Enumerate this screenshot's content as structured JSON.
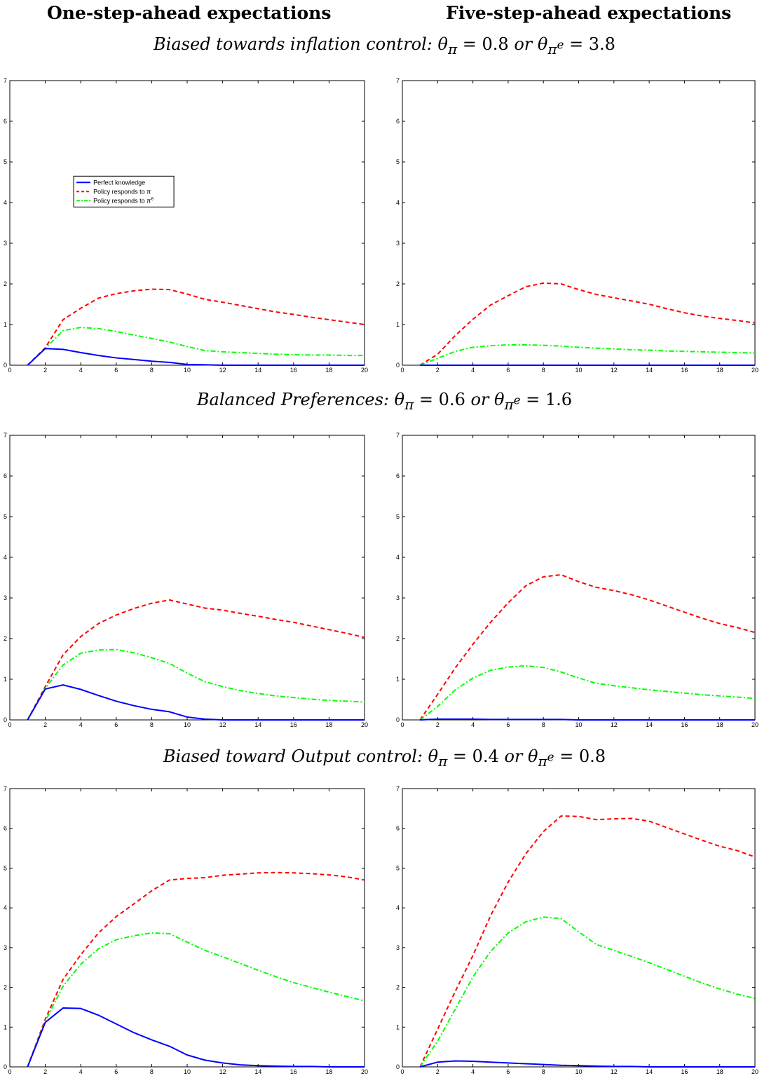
{
  "headers": {
    "left": "One-step-ahead expectations",
    "right": "Five-step-ahead expectations"
  },
  "rows": [
    {
      "title": "Biased towards inflation control:",
      "theta_pi": "0.8",
      "theta_pie": "3.8"
    },
    {
      "title": "Balanced Preferences:",
      "theta_pi": "0.6",
      "theta_pie": "1.6"
    },
    {
      "title": "Biased toward Output control:",
      "theta_pi": "0.4",
      "theta_pie": "0.8"
    }
  ],
  "title_parts": {
    "equals": "=",
    "or": "or"
  },
  "legend": {
    "entries": [
      {
        "label": "Perfect knowledge",
        "color": "#0000ff",
        "style": "solid"
      },
      {
        "label": "Policy responds to π",
        "color": "#ff0000",
        "style": "dashed"
      },
      {
        "label": "Policy responds to π",
        "superscript": "e",
        "color": "#00ff00",
        "style": "dashdot"
      }
    ]
  },
  "chart_data": [
    {
      "type": "line",
      "row": 0,
      "column": "one-step",
      "xlim": [
        0,
        20
      ],
      "ylim": [
        0,
        7
      ],
      "xticks": [
        0,
        2,
        4,
        6,
        8,
        10,
        12,
        14,
        16,
        18,
        20
      ],
      "yticks": [
        0,
        1,
        2,
        3,
        4,
        5,
        6,
        7
      ],
      "legend": "upper-left",
      "x": [
        1,
        2,
        3,
        4,
        5,
        6,
        7,
        8,
        9,
        10,
        11,
        12,
        13,
        14,
        15,
        16,
        17,
        18,
        19,
        20
      ],
      "series": [
        {
          "name": "Perfect knowledge",
          "values": [
            0,
            0.41,
            0.39,
            0.31,
            0.24,
            0.18,
            0.14,
            0.1,
            0.07,
            0.02,
            0.01,
            0,
            0,
            0,
            0,
            0,
            0,
            0,
            0,
            0
          ]
        },
        {
          "name": "Policy responds to π",
          "values": [
            0,
            0.43,
            1.12,
            1.4,
            1.65,
            1.76,
            1.83,
            1.87,
            1.86,
            1.75,
            1.62,
            1.55,
            1.47,
            1.39,
            1.31,
            1.25,
            1.18,
            1.12,
            1.06,
            1.0
          ]
        },
        {
          "name": "Policy responds to πe",
          "values": [
            0,
            0.41,
            0.85,
            0.93,
            0.9,
            0.83,
            0.74,
            0.66,
            0.57,
            0.46,
            0.36,
            0.33,
            0.31,
            0.29,
            0.27,
            0.26,
            0.25,
            0.25,
            0.24,
            0.24
          ]
        }
      ]
    },
    {
      "type": "line",
      "row": 0,
      "column": "five-step",
      "xlim": [
        0,
        20
      ],
      "ylim": [
        0,
        7
      ],
      "xticks": [
        0,
        2,
        4,
        6,
        8,
        10,
        12,
        14,
        16,
        18,
        20
      ],
      "yticks": [
        0,
        1,
        2,
        3,
        4,
        5,
        6,
        7
      ],
      "x": [
        1,
        2,
        3,
        4,
        5,
        6,
        7,
        8,
        9,
        10,
        11,
        12,
        13,
        14,
        15,
        16,
        17,
        18,
        19,
        20
      ],
      "series": [
        {
          "name": "Perfect knowledge",
          "values": [
            0,
            0,
            0,
            0,
            0,
            0,
            0,
            0,
            0,
            0,
            0,
            0,
            0,
            0,
            0,
            0,
            0,
            0,
            0,
            0
          ]
        },
        {
          "name": "Policy responds to π",
          "values": [
            0,
            0.27,
            0.73,
            1.13,
            1.48,
            1.71,
            1.93,
            2.02,
            2.0,
            1.86,
            1.74,
            1.66,
            1.58,
            1.5,
            1.39,
            1.29,
            1.21,
            1.15,
            1.1,
            1.04
          ]
        },
        {
          "name": "Policy responds to πe",
          "values": [
            0,
            0.17,
            0.34,
            0.44,
            0.48,
            0.5,
            0.5,
            0.49,
            0.47,
            0.44,
            0.42,
            0.4,
            0.38,
            0.37,
            0.35,
            0.34,
            0.33,
            0.32,
            0.31,
            0.3
          ]
        }
      ]
    },
    {
      "type": "line",
      "row": 1,
      "column": "one-step",
      "xlim": [
        0,
        20
      ],
      "ylim": [
        0,
        7
      ],
      "xticks": [
        0,
        2,
        4,
        6,
        8,
        10,
        12,
        14,
        16,
        18,
        20
      ],
      "yticks": [
        0,
        1,
        2,
        3,
        4,
        5,
        6,
        7
      ],
      "x": [
        1,
        2,
        3,
        4,
        5,
        6,
        7,
        8,
        9,
        10,
        11,
        12,
        13,
        14,
        15,
        16,
        17,
        18,
        19,
        20
      ],
      "series": [
        {
          "name": "Perfect knowledge",
          "values": [
            0,
            0.76,
            0.86,
            0.75,
            0.6,
            0.46,
            0.35,
            0.26,
            0.2,
            0.07,
            0.02,
            0,
            0,
            0,
            0,
            0,
            0,
            0,
            0,
            0
          ]
        },
        {
          "name": "Policy responds to π",
          "values": [
            0,
            0.82,
            1.6,
            2.05,
            2.37,
            2.58,
            2.74,
            2.87,
            2.95,
            2.85,
            2.75,
            2.7,
            2.62,
            2.55,
            2.47,
            2.4,
            2.31,
            2.22,
            2.13,
            2.03
          ]
        },
        {
          "name": "Policy responds to πe",
          "values": [
            0,
            0.78,
            1.35,
            1.64,
            1.72,
            1.73,
            1.65,
            1.53,
            1.39,
            1.15,
            0.94,
            0.82,
            0.72,
            0.65,
            0.59,
            0.55,
            0.51,
            0.48,
            0.46,
            0.44
          ]
        }
      ]
    },
    {
      "type": "line",
      "row": 1,
      "column": "five-step",
      "xlim": [
        0,
        20
      ],
      "ylim": [
        0,
        7
      ],
      "xticks": [
        0,
        2,
        4,
        6,
        8,
        10,
        12,
        14,
        16,
        18,
        20
      ],
      "yticks": [
        0,
        1,
        2,
        3,
        4,
        5,
        6,
        7
      ],
      "x": [
        1,
        2,
        3,
        4,
        5,
        6,
        7,
        8,
        9,
        10,
        11,
        12,
        13,
        14,
        15,
        16,
        17,
        18,
        19,
        20
      ],
      "series": [
        {
          "name": "Perfect knowledge",
          "values": [
            0,
            0.02,
            0.02,
            0.02,
            0.01,
            0.01,
            0.01,
            0.01,
            0.01,
            0,
            0,
            0,
            0,
            0,
            0,
            0,
            0,
            0,
            0,
            0
          ]
        },
        {
          "name": "Policy responds to π",
          "values": [
            0,
            0.63,
            1.28,
            1.86,
            2.4,
            2.88,
            3.3,
            3.52,
            3.57,
            3.4,
            3.26,
            3.18,
            3.08,
            2.95,
            2.8,
            2.65,
            2.5,
            2.37,
            2.27,
            2.15
          ]
        },
        {
          "name": "Policy responds to πe",
          "values": [
            0,
            0.33,
            0.74,
            1.03,
            1.22,
            1.3,
            1.33,
            1.29,
            1.18,
            1.03,
            0.9,
            0.84,
            0.79,
            0.74,
            0.7,
            0.66,
            0.62,
            0.59,
            0.56,
            0.53
          ]
        }
      ]
    },
    {
      "type": "line",
      "row": 2,
      "column": "one-step",
      "xlim": [
        0,
        20
      ],
      "ylim": [
        0,
        7
      ],
      "xticks": [
        0,
        2,
        4,
        6,
        8,
        10,
        12,
        14,
        16,
        18,
        20
      ],
      "yticks": [
        0,
        1,
        2,
        3,
        4,
        5,
        6,
        7
      ],
      "x": [
        1,
        2,
        3,
        4,
        5,
        6,
        7,
        8,
        9,
        10,
        11,
        12,
        13,
        14,
        15,
        16,
        17,
        18,
        19,
        20
      ],
      "series": [
        {
          "name": "Perfect knowledge",
          "values": [
            0,
            1.12,
            1.48,
            1.47,
            1.3,
            1.08,
            0.86,
            0.68,
            0.52,
            0.3,
            0.17,
            0.1,
            0.05,
            0.03,
            0.02,
            0.01,
            0.01,
            0,
            0,
            0
          ]
        },
        {
          "name": "Policy responds to π",
          "values": [
            0,
            1.2,
            2.2,
            2.82,
            3.37,
            3.78,
            4.1,
            4.43,
            4.7,
            4.74,
            4.76,
            4.82,
            4.85,
            4.88,
            4.89,
            4.88,
            4.86,
            4.83,
            4.78,
            4.7
          ]
        },
        {
          "name": "Policy responds to πe",
          "values": [
            0,
            1.15,
            2.03,
            2.58,
            2.97,
            3.2,
            3.3,
            3.37,
            3.35,
            3.14,
            2.93,
            2.77,
            2.6,
            2.43,
            2.27,
            2.12,
            2.0,
            1.88,
            1.77,
            1.66
          ]
        }
      ]
    },
    {
      "type": "line",
      "row": 2,
      "column": "five-step",
      "xlim": [
        0,
        20
      ],
      "ylim": [
        0,
        7
      ],
      "xticks": [
        0,
        2,
        4,
        6,
        8,
        10,
        12,
        14,
        16,
        18,
        20
      ],
      "yticks": [
        0,
        1,
        2,
        3,
        4,
        5,
        6,
        7
      ],
      "x": [
        1,
        2,
        3,
        4,
        5,
        6,
        7,
        8,
        9,
        10,
        11,
        12,
        13,
        14,
        15,
        16,
        17,
        18,
        19,
        20
      ],
      "series": [
        {
          "name": "Perfect knowledge",
          "values": [
            0,
            0.12,
            0.15,
            0.14,
            0.12,
            0.1,
            0.08,
            0.06,
            0.04,
            0.03,
            0.02,
            0.01,
            0.01,
            0,
            0,
            0,
            0,
            0,
            0,
            0
          ]
        },
        {
          "name": "Policy responds to π",
          "values": [
            0,
            0.95,
            1.9,
            2.8,
            3.8,
            4.65,
            5.36,
            5.92,
            6.31,
            6.3,
            6.22,
            6.24,
            6.25,
            6.18,
            6.02,
            5.86,
            5.7,
            5.55,
            5.44,
            5.28
          ]
        },
        {
          "name": "Policy responds to πe",
          "values": [
            0,
            0.65,
            1.45,
            2.26,
            2.9,
            3.37,
            3.65,
            3.77,
            3.73,
            3.4,
            3.08,
            2.93,
            2.78,
            2.62,
            2.45,
            2.28,
            2.11,
            1.96,
            1.83,
            1.72
          ]
        }
      ]
    }
  ]
}
